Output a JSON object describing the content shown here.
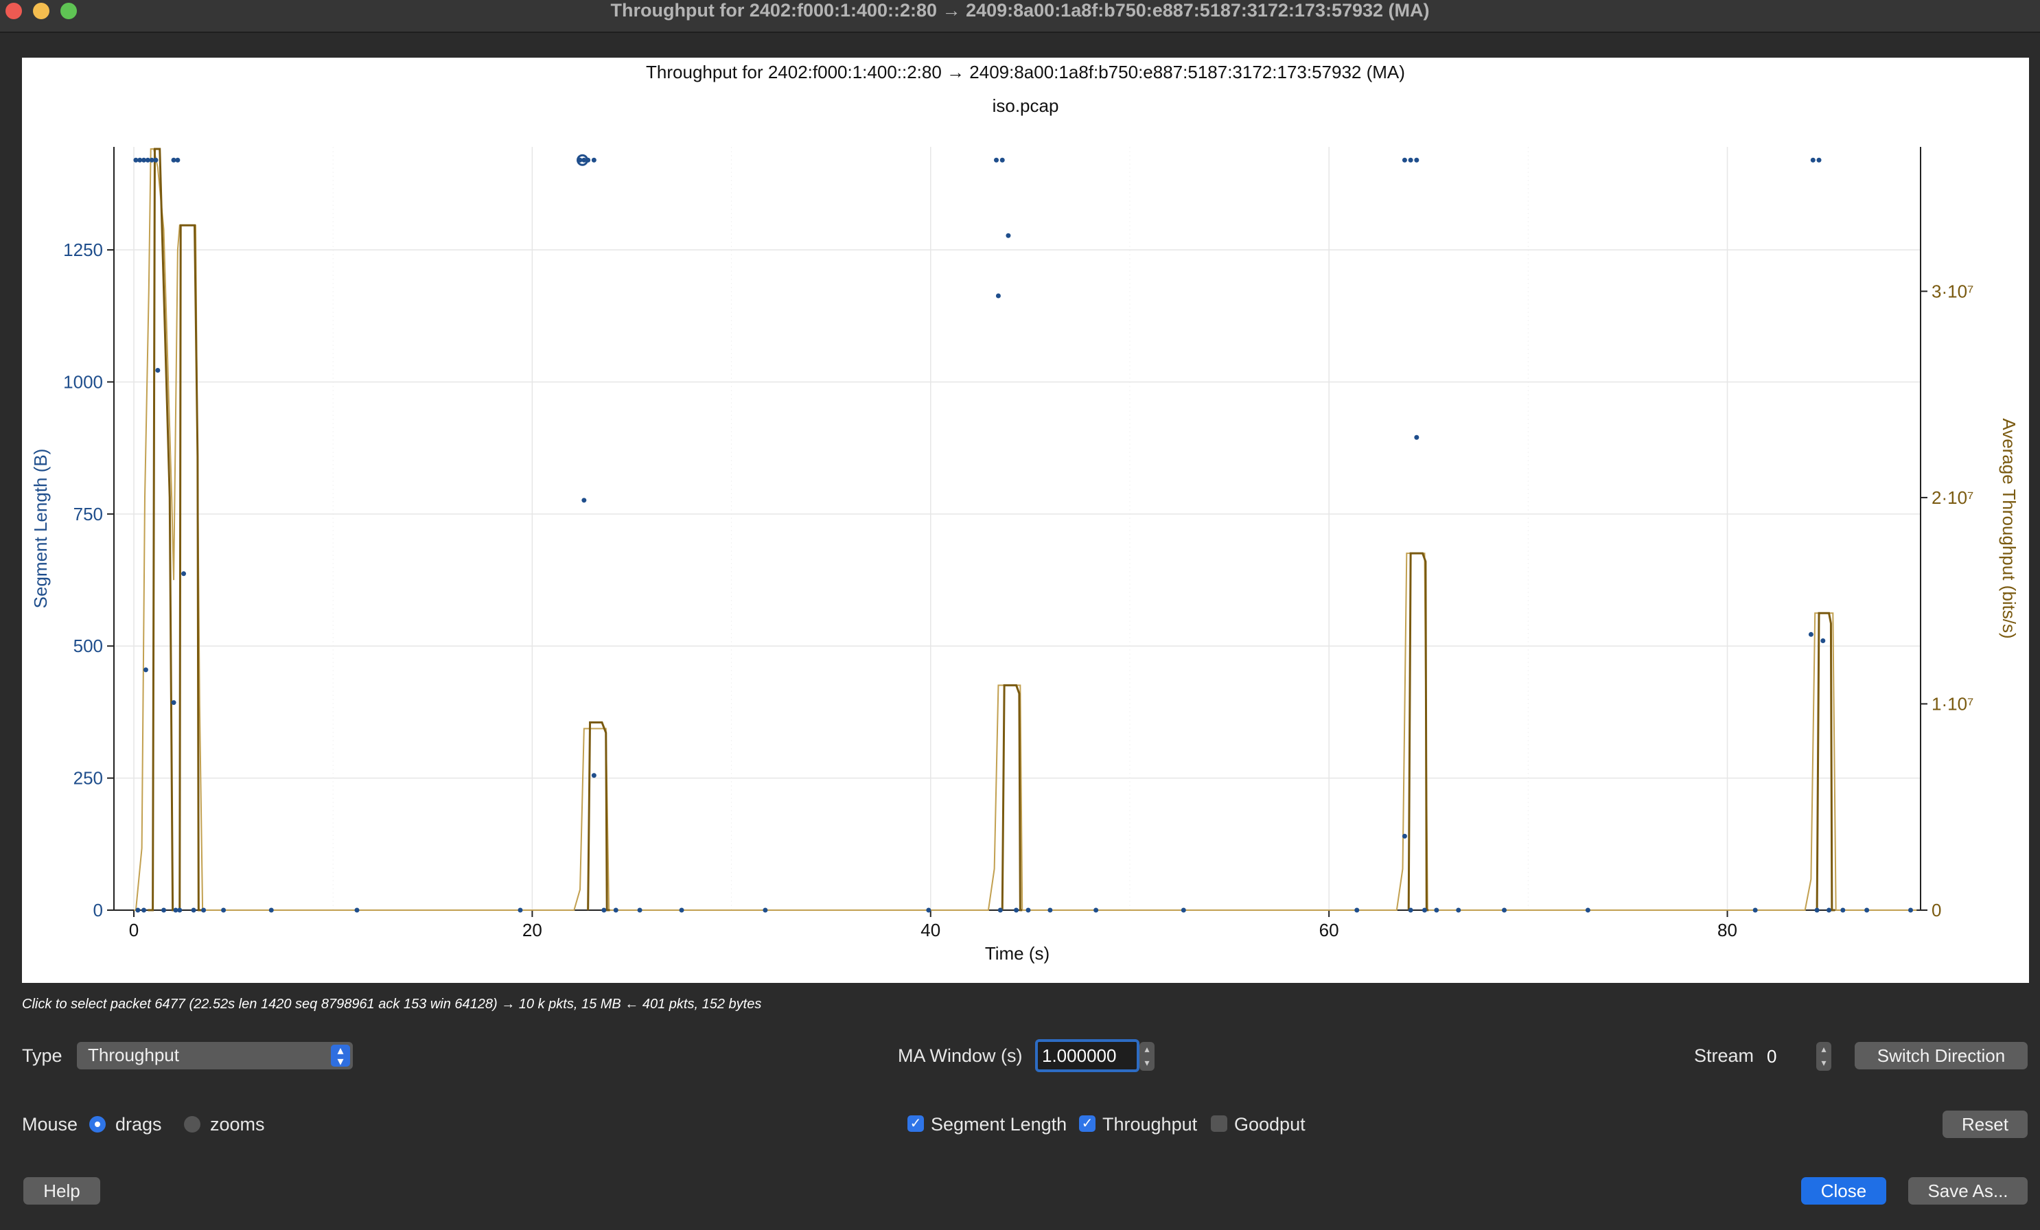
{
  "window": {
    "title": "Throughput for 2402:f000:1:400::2:80 → 2409:8a00:1a8f:b750:e887:5187:3172:173:57932 (MA)"
  },
  "chart_data": {
    "type": "scatter",
    "title": "Throughput for 2402:f000:1:400::2:80 → 2409:8a00:1a8f:b750:e887:5187:3172:173:57932 (MA)",
    "subtitle": "iso.pcap",
    "xlabel": "Time (s)",
    "ylabel_left": "Segment Length (B)",
    "ylabel_right": "Average Throughput (bits/s)",
    "xlim": [
      -1,
      89.7
    ],
    "ylim_left": [
      0,
      1445
    ],
    "ylim_right": [
      0,
      37000000
    ],
    "x_ticks": [
      "0",
      "20",
      "40",
      "60",
      "80"
    ],
    "y_ticks_left": [
      "0",
      "250",
      "500",
      "750",
      "1000",
      "1250"
    ],
    "y_ticks_right": [
      "0",
      "1·10⁷",
      "2·10⁷",
      "3·10⁷"
    ],
    "grid": true,
    "colors": {
      "segment": "#1f4e8c",
      "throughput": "#7a5a10",
      "throughput_light": "#c2a050"
    },
    "series": [
      {
        "name": "Segment Length",
        "points": [
          [
            0.1,
            1420
          ],
          [
            0.3,
            1420
          ],
          [
            0.5,
            1420
          ],
          [
            0.7,
            1420
          ],
          [
            0.9,
            1420
          ],
          [
            1.1,
            1420
          ],
          [
            2.0,
            1420
          ],
          [
            2.2,
            1420
          ],
          [
            0.6,
            455
          ],
          [
            1.2,
            1022
          ],
          [
            2.0,
            393
          ],
          [
            2.5,
            637
          ],
          [
            0.2,
            0
          ],
          [
            0.5,
            0
          ],
          [
            1.5,
            0
          ],
          [
            2.1,
            0
          ],
          [
            2.3,
            0
          ],
          [
            3.0,
            0
          ],
          [
            3.5,
            0
          ],
          [
            4.5,
            0
          ],
          [
            6.9,
            0
          ],
          [
            11.2,
            0
          ],
          [
            19.4,
            0
          ],
          [
            22.4,
            1420
          ],
          [
            22.6,
            1420
          ],
          [
            22.8,
            1420
          ],
          [
            23.1,
            1420
          ],
          [
            22.6,
            776
          ],
          [
            23.1,
            255
          ],
          [
            23.6,
            0
          ],
          [
            24.2,
            0
          ],
          [
            25.4,
            0
          ],
          [
            27.5,
            0
          ],
          [
            31.7,
            0
          ],
          [
            39.9,
            0
          ],
          [
            43.3,
            1420
          ],
          [
            43.6,
            1420
          ],
          [
            43.4,
            1163
          ],
          [
            43.9,
            1277
          ],
          [
            43.5,
            0
          ],
          [
            44.3,
            0
          ],
          [
            44.9,
            0
          ],
          [
            46.0,
            0
          ],
          [
            48.3,
            0
          ],
          [
            52.7,
            0
          ],
          [
            61.4,
            0
          ],
          [
            63.8,
            1420
          ],
          [
            64.1,
            1420
          ],
          [
            64.4,
            1420
          ],
          [
            63.8,
            140
          ],
          [
            64.4,
            895
          ],
          [
            64.1,
            0
          ],
          [
            64.8,
            0
          ],
          [
            65.4,
            0
          ],
          [
            66.5,
            0
          ],
          [
            68.8,
            0
          ],
          [
            73.0,
            0
          ],
          [
            81.4,
            0
          ],
          [
            84.3,
            1420
          ],
          [
            84.6,
            1420
          ],
          [
            84.2,
            522
          ],
          [
            84.8,
            510
          ],
          [
            84.5,
            0
          ],
          [
            85.1,
            0
          ],
          [
            85.8,
            0
          ],
          [
            87.0,
            0
          ],
          [
            89.2,
            0
          ]
        ]
      },
      {
        "name": "Throughput",
        "dark": [
          [
            [
              0.7,
              0
            ],
            [
              0.95,
              0
            ],
            [
              1.05,
              36900000
            ],
            [
              1.3,
              36900000
            ],
            [
              1.8,
              20000000
            ],
            [
              1.95,
              0
            ],
            [
              2.1,
              0
            ]
          ],
          [
            [
              2.2,
              0
            ],
            [
              2.3,
              0
            ],
            [
              2.35,
              33200000
            ],
            [
              3.05,
              33200000
            ],
            [
              3.2,
              22000000
            ],
            [
              3.25,
              0
            ],
            [
              3.4,
              0
            ]
          ],
          [
            [
              22.8,
              0
            ],
            [
              22.9,
              9100000
            ],
            [
              23.5,
              9100000
            ],
            [
              23.7,
              8600000
            ],
            [
              23.75,
              0
            ],
            [
              23.9,
              0
            ]
          ],
          [
            [
              43.6,
              0
            ],
            [
              43.7,
              10900000
            ],
            [
              44.3,
              10900000
            ],
            [
              44.45,
              10500000
            ],
            [
              44.5,
              0
            ],
            [
              44.6,
              0
            ]
          ],
          [
            [
              64.0,
              0
            ],
            [
              64.1,
              17300000
            ],
            [
              64.7,
              17300000
            ],
            [
              64.85,
              16900000
            ],
            [
              64.9,
              0
            ],
            [
              65.0,
              0
            ]
          ],
          [
            [
              84.5,
              0
            ],
            [
              84.6,
              14400000
            ],
            [
              85.1,
              14400000
            ],
            [
              85.2,
              13900000
            ],
            [
              85.25,
              0
            ],
            [
              85.4,
              0
            ]
          ]
        ],
        "light": [
          [
            [
              0,
              0
            ],
            [
              0.1,
              0
            ],
            [
              0.4,
              3000000
            ],
            [
              0.55,
              20000000
            ],
            [
              0.75,
              30000000
            ],
            [
              0.85,
              36900000
            ],
            [
              1.0,
              36900000
            ],
            [
              1.2,
              36000000
            ],
            [
              1.5,
              33000000
            ],
            [
              1.9,
              20000000
            ],
            [
              2.0,
              16000000
            ],
            [
              2.2,
              32000000
            ],
            [
              2.3,
              33200000
            ],
            [
              3.1,
              33200000
            ],
            [
              3.3,
              10000000
            ],
            [
              3.45,
              0
            ],
            [
              22.1,
              0
            ],
            [
              22.4,
              1000000
            ],
            [
              22.6,
              8800000
            ],
            [
              23.7,
              8800000
            ],
            [
              23.85,
              0
            ],
            [
              42.9,
              0
            ],
            [
              43.2,
              2000000
            ],
            [
              43.4,
              10900000
            ],
            [
              44.5,
              10900000
            ],
            [
              44.6,
              0
            ],
            [
              63.4,
              0
            ],
            [
              63.7,
              2000000
            ],
            [
              63.9,
              17300000
            ],
            [
              64.8,
              17300000
            ],
            [
              64.95,
              0
            ],
            [
              83.9,
              0
            ],
            [
              84.2,
              1500000
            ],
            [
              84.4,
              14400000
            ],
            [
              85.3,
              14400000
            ],
            [
              85.45,
              0
            ],
            [
              89.5,
              0
            ]
          ]
        ]
      }
    ]
  },
  "status_text": "Click to select packet 6477 (22.52s len 1420 seq 8798961 ack 153 win 64128) → 10 k pkts, 15 MB ← 401 pkts, 152 bytes",
  "controls": {
    "type_label": "Type",
    "type_value": "Throughput",
    "ma_label": "MA Window (s)",
    "ma_value": "1.000000",
    "stream_label": "Stream",
    "stream_value": "0",
    "switch_direction": "Switch Direction",
    "mouse_label": "Mouse",
    "drags_label": "drags",
    "zooms_label": "zooms",
    "segment_length": "Segment Length",
    "throughput": "Throughput",
    "goodput": "Goodput",
    "reset": "Reset",
    "help": "Help",
    "close": "Close",
    "save_as": "Save As..."
  }
}
